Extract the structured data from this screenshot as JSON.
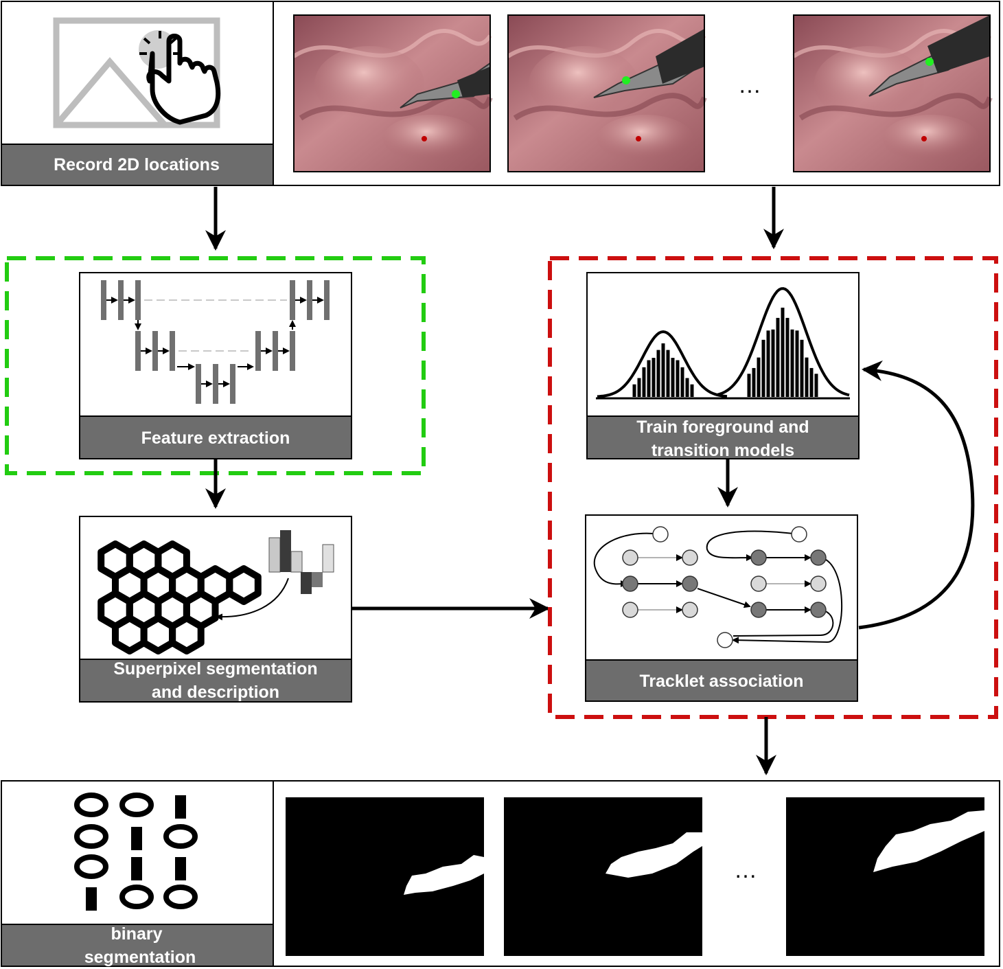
{
  "panels": {
    "record": {
      "label": "Record 2D locations"
    },
    "feature": {
      "label": "Feature extraction"
    },
    "superpixel": {
      "label_line1": "Superpixel segmentation",
      "label_line2": "and description"
    },
    "train": {
      "label_line1": "Train foreground and",
      "label_line2": "transition models"
    },
    "tracklet": {
      "label": "Tracklet association"
    },
    "output": {
      "label_line1": "binary",
      "label_line2": "segmentation"
    }
  },
  "ellipsis": "…",
  "colors": {
    "caption_bar": "#6d6d6d",
    "green_dashed": "#22cc11",
    "red_dashed": "#cc0f0f",
    "tool_point": "#22ee22",
    "tissue": "#b5707a"
  }
}
